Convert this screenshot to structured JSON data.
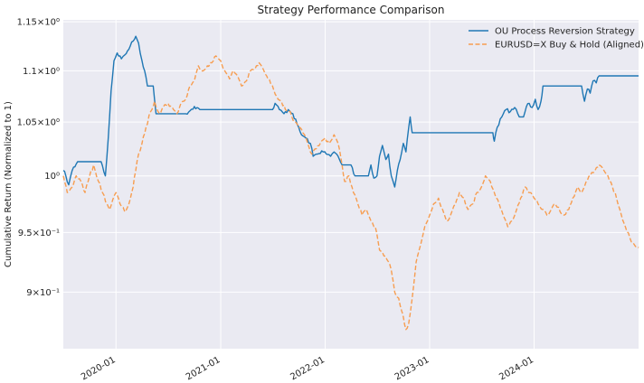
{
  "chart_data": {
    "type": "line",
    "title": "Strategy Performance Comparison",
    "xlabel": "",
    "ylabel": "Cumulative Return (Normalized to 1)",
    "yscale": "log",
    "xlim": [
      "2019-07-01",
      "2024-12-31"
    ],
    "ylim": [
      0.855,
      1.152
    ],
    "x_ticks": [
      "2020-01",
      "2021-01",
      "2022-01",
      "2023-01",
      "2024-01"
    ],
    "y_ticks": [
      {
        "value": 0.9,
        "label": "9×10⁻¹"
      },
      {
        "value": 0.95,
        "label": "9.5×10⁻¹"
      },
      {
        "value": 1.0,
        "label": "10⁰"
      },
      {
        "value": 1.05,
        "label": "1.05×10⁰"
      },
      {
        "value": 1.1,
        "label": "1.1×10⁰"
      },
      {
        "value": 1.15,
        "label": "1.15×10⁰"
      }
    ],
    "grid": true,
    "legend_position": "top-right",
    "series": [
      {
        "name": "OU Process Reversion Strategy",
        "color": "#1f77b4",
        "style": "solid",
        "points": [
          [
            "2019-07-01",
            1.005
          ],
          [
            "2019-07-10",
            1.0
          ],
          [
            "2019-07-20",
            0.992
          ],
          [
            "2019-08-01",
            1.005
          ],
          [
            "2019-08-20",
            1.013
          ],
          [
            "2019-09-20",
            1.013
          ],
          [
            "2019-10-20",
            1.013
          ],
          [
            "2019-11-10",
            1.013
          ],
          [
            "2019-11-25",
            1.0
          ],
          [
            "2019-12-05",
            1.035
          ],
          [
            "2019-12-15",
            1.08
          ],
          [
            "2019-12-25",
            1.11
          ],
          [
            "2020-01-05",
            1.118
          ],
          [
            "2020-01-20",
            1.112
          ],
          [
            "2020-02-01",
            1.116
          ],
          [
            "2020-02-10",
            1.12
          ],
          [
            "2020-02-20",
            1.125
          ],
          [
            "2020-03-01",
            1.13
          ],
          [
            "2020-03-10",
            1.135
          ],
          [
            "2020-03-20",
            1.128
          ],
          [
            "2020-04-01",
            1.11
          ],
          [
            "2020-04-10",
            1.1
          ],
          [
            "2020-04-20",
            1.085
          ],
          [
            "2020-05-10",
            1.085
          ],
          [
            "2020-05-20",
            1.058
          ],
          [
            "2020-06-10",
            1.058
          ],
          [
            "2020-07-01",
            1.058
          ],
          [
            "2020-08-01",
            1.058
          ],
          [
            "2020-09-01",
            1.058
          ],
          [
            "2020-10-01",
            1.065
          ],
          [
            "2020-10-20",
            1.062
          ],
          [
            "2020-11-10",
            1.062
          ],
          [
            "2020-12-10",
            1.062
          ],
          [
            "2021-01-10",
            1.062
          ],
          [
            "2021-02-10",
            1.062
          ],
          [
            "2021-03-10",
            1.062
          ],
          [
            "2021-04-10",
            1.062
          ],
          [
            "2021-05-10",
            1.062
          ],
          [
            "2021-06-10",
            1.062
          ],
          [
            "2021-07-01",
            1.062
          ],
          [
            "2021-07-10",
            1.068
          ],
          [
            "2021-07-25",
            1.062
          ],
          [
            "2021-08-10",
            1.058
          ],
          [
            "2021-08-25",
            1.062
          ],
          [
            "2021-09-10",
            1.058
          ],
          [
            "2021-09-25",
            1.048
          ],
          [
            "2021-10-10",
            1.038
          ],
          [
            "2021-10-25",
            1.035
          ],
          [
            "2021-11-10",
            1.03
          ],
          [
            "2021-11-20",
            1.018
          ],
          [
            "2021-12-05",
            1.02
          ],
          [
            "2021-12-20",
            1.023
          ],
          [
            "2022-01-05",
            1.02
          ],
          [
            "2022-01-20",
            1.018
          ],
          [
            "2022-02-01",
            1.022
          ],
          [
            "2022-02-15",
            1.018
          ],
          [
            "2022-03-01",
            1.01
          ],
          [
            "2022-04-01",
            1.01
          ],
          [
            "2022-04-15",
            1.0
          ],
          [
            "2022-05-15",
            1.0
          ],
          [
            "2022-06-01",
            1.0
          ],
          [
            "2022-06-10",
            1.01
          ],
          [
            "2022-06-20",
            0.998
          ],
          [
            "2022-07-01",
            1.0
          ],
          [
            "2022-07-10",
            1.018
          ],
          [
            "2022-07-20",
            1.028
          ],
          [
            "2022-08-01",
            1.015
          ],
          [
            "2022-08-10",
            1.02
          ],
          [
            "2022-08-20",
            1.0
          ],
          [
            "2022-09-01",
            0.99
          ],
          [
            "2022-09-10",
            1.005
          ],
          [
            "2022-09-20",
            1.015
          ],
          [
            "2022-10-01",
            1.03
          ],
          [
            "2022-10-10",
            1.022
          ],
          [
            "2022-10-20",
            1.045
          ],
          [
            "2022-10-25",
            1.055
          ],
          [
            "2022-11-01",
            1.04
          ],
          [
            "2022-12-01",
            1.04
          ],
          [
            "2023-01-01",
            1.04
          ],
          [
            "2023-03-01",
            1.04
          ],
          [
            "2023-05-01",
            1.04
          ],
          [
            "2023-07-01",
            1.04
          ],
          [
            "2023-08-10",
            1.04
          ],
          [
            "2023-08-15",
            1.032
          ],
          [
            "2023-08-25",
            1.045
          ],
          [
            "2023-09-10",
            1.055
          ],
          [
            "2023-09-25",
            1.062
          ],
          [
            "2023-10-10",
            1.06
          ],
          [
            "2023-10-25",
            1.064
          ],
          [
            "2023-11-10",
            1.055
          ],
          [
            "2023-11-25",
            1.055
          ],
          [
            "2023-12-05",
            1.065
          ],
          [
            "2023-12-15",
            1.068
          ],
          [
            "2023-12-25",
            1.064
          ],
          [
            "2024-01-05",
            1.072
          ],
          [
            "2024-01-15",
            1.062
          ],
          [
            "2024-01-25",
            1.07
          ],
          [
            "2024-02-01",
            1.085
          ],
          [
            "2024-03-01",
            1.085
          ],
          [
            "2024-04-01",
            1.085
          ],
          [
            "2024-05-01",
            1.085
          ],
          [
            "2024-06-01",
            1.085
          ],
          [
            "2024-06-15",
            1.085
          ],
          [
            "2024-06-25",
            1.07
          ],
          [
            "2024-07-05",
            1.082
          ],
          [
            "2024-07-15",
            1.078
          ],
          [
            "2024-07-25",
            1.09
          ],
          [
            "2024-08-05",
            1.088
          ],
          [
            "2024-08-15",
            1.095
          ],
          [
            "2024-09-01",
            1.095
          ],
          [
            "2024-10-01",
            1.095
          ],
          [
            "2024-11-01",
            1.095
          ],
          [
            "2024-12-31",
            1.095
          ]
        ]
      },
      {
        "name": "EURUSD=X Buy & Hold (Aligned)",
        "color": "#f79d50",
        "style": "dashed",
        "points": [
          [
            "2019-07-01",
            1.0
          ],
          [
            "2019-07-15",
            0.985
          ],
          [
            "2019-08-01",
            0.99
          ],
          [
            "2019-08-15",
            1.0
          ],
          [
            "2019-09-01",
            0.995
          ],
          [
            "2019-09-15",
            0.985
          ],
          [
            "2019-10-01",
            1.0
          ],
          [
            "2019-10-15",
            1.01
          ],
          [
            "2019-11-01",
            0.995
          ],
          [
            "2019-11-15",
            0.985
          ],
          [
            "2019-12-01",
            0.975
          ],
          [
            "2019-12-10",
            0.97
          ],
          [
            "2019-12-20",
            0.978
          ],
          [
            "2020-01-01",
            0.985
          ],
          [
            "2020-01-15",
            0.975
          ],
          [
            "2020-02-01",
            0.968
          ],
          [
            "2020-02-15",
            0.975
          ],
          [
            "2020-03-01",
            0.99
          ],
          [
            "2020-03-10",
            1.005
          ],
          [
            "2020-03-20",
            1.02
          ],
          [
            "2020-04-01",
            1.03
          ],
          [
            "2020-04-15",
            1.045
          ],
          [
            "2020-05-01",
            1.06
          ],
          [
            "2020-05-15",
            1.07
          ],
          [
            "2020-06-01",
            1.058
          ],
          [
            "2020-06-15",
            1.065
          ],
          [
            "2020-07-01",
            1.068
          ],
          [
            "2020-07-20",
            1.062
          ],
          [
            "2020-08-01",
            1.058
          ],
          [
            "2020-08-15",
            1.068
          ],
          [
            "2020-09-01",
            1.072
          ],
          [
            "2020-09-15",
            1.085
          ],
          [
            "2020-10-01",
            1.09
          ],
          [
            "2020-10-15",
            1.105
          ],
          [
            "2020-11-01",
            1.1
          ],
          [
            "2020-11-15",
            1.105
          ],
          [
            "2020-12-01",
            1.108
          ],
          [
            "2020-12-15",
            1.115
          ],
          [
            "2021-01-01",
            1.11
          ],
          [
            "2021-01-15",
            1.1
          ],
          [
            "2021-02-01",
            1.092
          ],
          [
            "2021-02-15",
            1.1
          ],
          [
            "2021-03-01",
            1.095
          ],
          [
            "2021-03-15",
            1.085
          ],
          [
            "2021-04-01",
            1.09
          ],
          [
            "2021-04-15",
            1.1
          ],
          [
            "2021-05-01",
            1.102
          ],
          [
            "2021-05-15",
            1.108
          ],
          [
            "2021-06-01",
            1.1
          ],
          [
            "2021-06-15",
            1.092
          ],
          [
            "2021-07-01",
            1.085
          ],
          [
            "2021-07-15",
            1.075
          ],
          [
            "2021-08-01",
            1.07
          ],
          [
            "2021-08-15",
            1.062
          ],
          [
            "2021-09-01",
            1.06
          ],
          [
            "2021-09-15",
            1.05
          ],
          [
            "2021-10-01",
            1.045
          ],
          [
            "2021-10-15",
            1.04
          ],
          [
            "2021-11-01",
            1.03
          ],
          [
            "2021-11-15",
            1.02
          ],
          [
            "2021-12-01",
            1.025
          ],
          [
            "2021-12-15",
            1.03
          ],
          [
            "2022-01-01",
            1.035
          ],
          [
            "2022-01-15",
            1.03
          ],
          [
            "2022-02-01",
            1.038
          ],
          [
            "2022-02-15",
            1.03
          ],
          [
            "2022-03-01",
            1.01
          ],
          [
            "2022-03-10",
            0.995
          ],
          [
            "2022-03-25",
            1.0
          ],
          [
            "2022-04-10",
            0.985
          ],
          [
            "2022-04-25",
            0.975
          ],
          [
            "2022-05-10",
            0.965
          ],
          [
            "2022-05-25",
            0.97
          ],
          [
            "2022-06-10",
            0.96
          ],
          [
            "2022-06-25",
            0.955
          ],
          [
            "2022-07-10",
            0.935
          ],
          [
            "2022-07-25",
            0.93
          ],
          [
            "2022-08-10",
            0.925
          ],
          [
            "2022-08-20",
            0.918
          ],
          [
            "2022-09-01",
            0.9
          ],
          [
            "2022-09-15",
            0.895
          ],
          [
            "2022-09-25",
            0.885
          ],
          [
            "2022-10-01",
            0.88
          ],
          [
            "2022-10-10",
            0.87
          ],
          [
            "2022-10-20",
            0.875
          ],
          [
            "2022-11-01",
            0.895
          ],
          [
            "2022-11-15",
            0.925
          ],
          [
            "2022-12-01",
            0.94
          ],
          [
            "2022-12-15",
            0.955
          ],
          [
            "2023-01-01",
            0.965
          ],
          [
            "2023-01-15",
            0.975
          ],
          [
            "2023-02-01",
            0.98
          ],
          [
            "2023-02-15",
            0.97
          ],
          [
            "2023-03-01",
            0.96
          ],
          [
            "2023-03-15",
            0.965
          ],
          [
            "2023-04-01",
            0.975
          ],
          [
            "2023-04-15",
            0.985
          ],
          [
            "2023-05-01",
            0.98
          ],
          [
            "2023-05-15",
            0.97
          ],
          [
            "2023-06-01",
            0.975
          ],
          [
            "2023-06-15",
            0.985
          ],
          [
            "2023-07-01",
            0.99
          ],
          [
            "2023-07-15",
            1.0
          ],
          [
            "2023-08-01",
            0.995
          ],
          [
            "2023-08-15",
            0.985
          ],
          [
            "2023-09-01",
            0.975
          ],
          [
            "2023-09-15",
            0.965
          ],
          [
            "2023-10-01",
            0.955
          ],
          [
            "2023-10-15",
            0.96
          ],
          [
            "2023-11-01",
            0.97
          ],
          [
            "2023-11-15",
            0.98
          ],
          [
            "2023-12-01",
            0.99
          ],
          [
            "2023-12-15",
            0.985
          ],
          [
            "2024-01-01",
            0.98
          ],
          [
            "2024-01-15",
            0.975
          ],
          [
            "2024-02-01",
            0.97
          ],
          [
            "2024-02-15",
            0.965
          ],
          [
            "2024-03-01",
            0.97
          ],
          [
            "2024-03-15",
            0.975
          ],
          [
            "2024-04-01",
            0.968
          ],
          [
            "2024-04-15",
            0.965
          ],
          [
            "2024-05-01",
            0.97
          ],
          [
            "2024-05-15",
            0.98
          ],
          [
            "2024-06-01",
            0.99
          ],
          [
            "2024-06-15",
            0.985
          ],
          [
            "2024-07-01",
            0.995
          ],
          [
            "2024-07-15",
            1.0
          ],
          [
            "2024-08-01",
            1.005
          ],
          [
            "2024-08-15",
            1.01
          ],
          [
            "2024-09-01",
            1.005
          ],
          [
            "2024-09-15",
            1.0
          ],
          [
            "2024-10-01",
            0.99
          ],
          [
            "2024-10-15",
            0.98
          ],
          [
            "2024-11-01",
            0.965
          ],
          [
            "2024-11-15",
            0.955
          ],
          [
            "2024-12-01",
            0.945
          ],
          [
            "2024-12-15",
            0.94
          ],
          [
            "2024-12-31",
            0.937
          ]
        ]
      }
    ]
  }
}
